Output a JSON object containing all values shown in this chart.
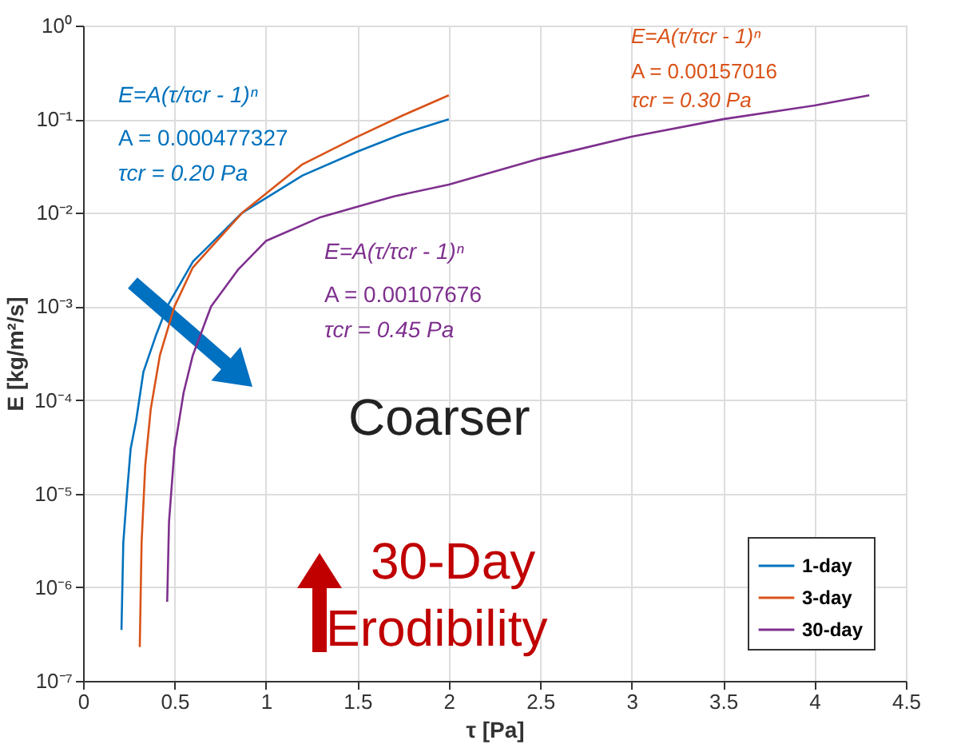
{
  "chart_data": {
    "type": "line",
    "xlabel": "τ [Pa]",
    "ylabel": "E [kg/m²/s]",
    "log": "y",
    "grid": true,
    "legend": "bottom right",
    "line_style": "solid",
    "marker": "none",
    "xlim": [
      0,
      4.5
    ],
    "xticks": [
      0,
      0.5,
      1,
      1.5,
      2,
      2.5,
      3,
      3.5,
      4,
      4.5
    ],
    "ylim": [
      1e-07,
      1
    ],
    "yticks": [
      {
        "value": 1e-07,
        "label": "10⁻⁷"
      },
      {
        "value": 1e-06,
        "label": "10⁻⁶"
      },
      {
        "value": 1e-05,
        "label": "10⁻⁵"
      },
      {
        "value": 0.0001,
        "label": "10⁻⁴"
      },
      {
        "value": 0.001,
        "label": "10⁻³"
      },
      {
        "value": 0.01,
        "label": "10⁻²"
      },
      {
        "value": 0.1,
        "label": "10⁻¹"
      },
      {
        "value": 1,
        "label": "10⁰"
      }
    ],
    "series": [
      {
        "name": "1-day",
        "color": "#0072bd",
        "x": [
          0.21,
          0.22,
          0.24,
          0.26,
          0.29,
          0.33,
          0.4,
          0.46,
          0.6,
          0.87,
          1.2,
          1.5,
          1.75,
          2.0
        ],
        "values": [
          3.5e-07,
          3e-06,
          1e-05,
          3e-05,
          6e-05,
          0.0002,
          0.0005,
          0.001,
          0.003,
          0.01,
          0.025,
          0.045,
          0.07,
          0.1
        ]
      },
      {
        "name": "3-day",
        "color": "#d95319",
        "x": [
          0.31,
          0.32,
          0.34,
          0.37,
          0.42,
          0.5,
          0.6,
          0.87,
          1.2,
          1.5,
          1.75,
          2.0
        ],
        "values": [
          2.3e-07,
          3e-06,
          2e-05,
          8e-05,
          0.0003,
          0.001,
          0.0026,
          0.01,
          0.033,
          0.065,
          0.11,
          0.18
        ]
      },
      {
        "name": "30-day",
        "color": "#7e2f8e",
        "x": [
          0.46,
          0.47,
          0.5,
          0.55,
          0.6,
          0.7,
          0.85,
          1.0,
          1.3,
          1.7,
          2.0,
          2.5,
          3.0,
          3.5,
          4.0,
          4.3
        ],
        "values": [
          7e-07,
          5e-06,
          3e-05,
          0.00012,
          0.0003,
          0.001,
          0.0025,
          0.005,
          0.009,
          0.015,
          0.02,
          0.038,
          0.065,
          0.1,
          0.14,
          0.18
        ]
      }
    ],
    "annotations": [
      "E=A(τ/τcr - 1)ⁿ",
      "A = 0.000477327",
      "τcr =  0.20 Pa",
      "E=A(τ/τcr - 1)ⁿ",
      "A = 0.00157016",
      "τcr =  0.30 Pa",
      "E=A(τ/τcr - 1)ⁿ",
      "A = 0.00107676",
      "τcr =  0.45 Pa",
      "Coarser",
      "30-Day",
      "Erodibility"
    ]
  }
}
